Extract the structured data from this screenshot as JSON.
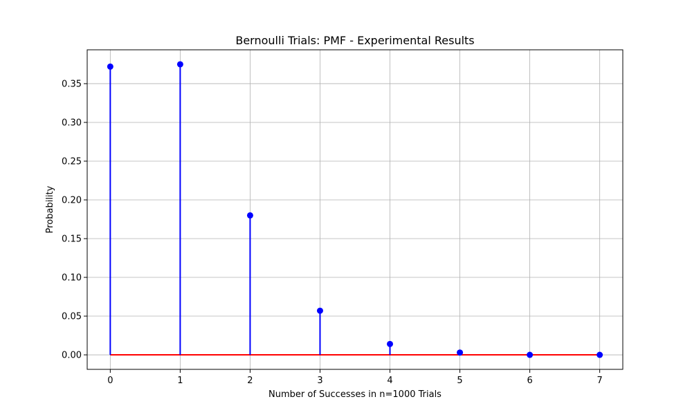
{
  "chart_data": {
    "type": "stem",
    "title": "Bernoulli Trials: PMF - Experimental Results",
    "xlabel": "Number of Successes in n=1000 Trials",
    "ylabel": "Probability",
    "x": [
      0,
      1,
      2,
      3,
      4,
      5,
      6,
      7
    ],
    "values": [
      0.372,
      0.375,
      0.18,
      0.057,
      0.014,
      0.003,
      0.0,
      0.0
    ],
    "xlim": [
      -0.33,
      7.33
    ],
    "ylim": [
      -0.0187,
      0.3937
    ],
    "xticks": [
      0,
      1,
      2,
      3,
      4,
      5,
      6,
      7
    ],
    "yticks": [
      0.0,
      0.05,
      0.1,
      0.15,
      0.2,
      0.25,
      0.3,
      0.35
    ],
    "xtick_labels": [
      "0",
      "1",
      "2",
      "3",
      "4",
      "5",
      "6",
      "7"
    ],
    "ytick_labels": [
      "0.00",
      "0.05",
      "0.10",
      "0.15",
      "0.20",
      "0.25",
      "0.30",
      "0.35"
    ],
    "grid": true,
    "colors": {
      "stem": "#0000ff",
      "marker": "#0000ff",
      "baseline": "#ff0000",
      "grid": "#b0b0b0",
      "axes": "#000000"
    }
  }
}
